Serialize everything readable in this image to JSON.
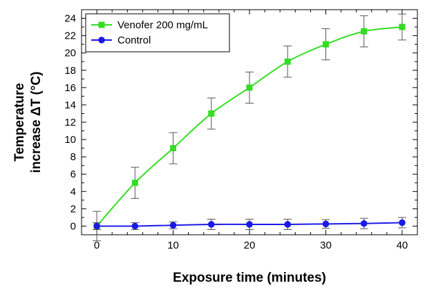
{
  "chart_data": {
    "type": "line",
    "title": "",
    "xlabel": "Exposure time (minutes)",
    "ylabel_lines": [
      "Temperature",
      "increase ΔT (°C)"
    ],
    "xlim": [
      -2,
      42
    ],
    "ylim": [
      -1,
      25
    ],
    "x_ticks": [
      0,
      10,
      20,
      30,
      40
    ],
    "y_ticks": [
      0,
      2,
      4,
      6,
      8,
      10,
      12,
      14,
      16,
      18,
      20,
      22,
      24
    ],
    "grid": false,
    "legend_position": "top-left",
    "x": [
      0,
      5,
      10,
      15,
      20,
      25,
      30,
      35,
      40
    ],
    "series": [
      {
        "name": "Venofer 200 mg/mL",
        "marker": "square",
        "color": "#33dd22",
        "values": [
          0,
          5,
          9,
          13,
          16,
          19,
          21,
          22.5,
          23
        ],
        "errors": [
          1.7,
          1.8,
          1.8,
          1.8,
          1.8,
          1.8,
          1.8,
          1.8,
          1.5
        ]
      },
      {
        "name": "Control",
        "marker": "circle",
        "color": "#1a1ae6",
        "values": [
          0,
          0,
          0.1,
          0.2,
          0.2,
          0.2,
          0.25,
          0.3,
          0.4
        ],
        "errors": [
          0.4,
          0.4,
          0.4,
          0.6,
          0.6,
          0.6,
          0.5,
          0.6,
          0.6
        ]
      }
    ]
  }
}
